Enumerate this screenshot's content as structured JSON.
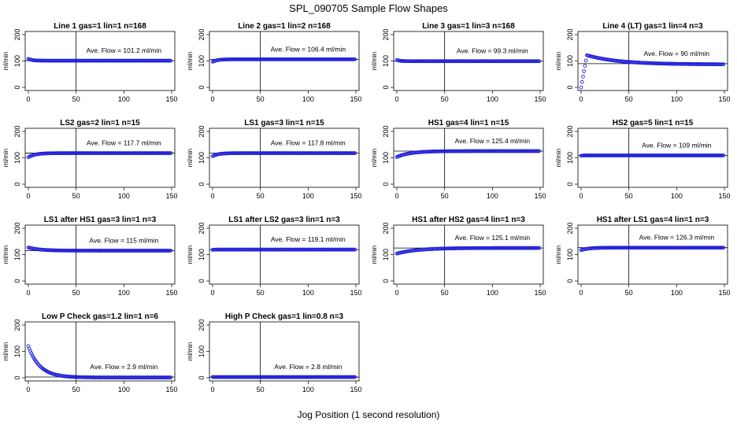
{
  "figure": {
    "title": "SPL_090705  Sample Flow Shapes",
    "xlabel": "Jog Position (1 second resolution)"
  },
  "chart_data": [
    {
      "type": "scatter",
      "title": "Line 1 gas=1 lin=1 n=168",
      "ylabel": "ml/min",
      "xlim": [
        0,
        150
      ],
      "ylim": [
        0,
        200
      ],
      "xticks": [
        0,
        50,
        100,
        150
      ],
      "yticks": [
        0,
        100,
        200
      ],
      "vline": 50,
      "hline": 101.2,
      "annotation": "Ave. Flow =  101.2  ml/min",
      "shape": {
        "start": 108,
        "level": 101.2,
        "peak": null,
        "settle": 4
      }
    },
    {
      "type": "scatter",
      "title": "Line 2 gas=1 lin=2 n=168",
      "ylabel": "ml/min",
      "xlim": [
        0,
        150
      ],
      "ylim": [
        0,
        200
      ],
      "xticks": [
        0,
        50,
        100,
        150
      ],
      "yticks": [
        0,
        100,
        200
      ],
      "vline": 50,
      "hline": 106.4,
      "annotation": "Ave. Flow =  106.4  ml/min",
      "shape": {
        "start": 97,
        "level": 106.4,
        "peak": null,
        "settle": 5
      }
    },
    {
      "type": "scatter",
      "title": "Line 3 gas=1 lin=3 n=168",
      "ylabel": "ml/min",
      "xlim": [
        0,
        150
      ],
      "ylim": [
        0,
        200
      ],
      "xticks": [
        0,
        50,
        100,
        150
      ],
      "yticks": [
        0,
        100,
        200
      ],
      "vline": 50,
      "hline": 99.3,
      "annotation": "Ave. Flow =  99.3  ml/min",
      "shape": {
        "start": 104,
        "level": 99.3,
        "peak": null,
        "settle": 3
      }
    },
    {
      "type": "scatter",
      "title": "Line 4 (LT) gas=1 lin=4 n=3",
      "ylabel": "ml/min",
      "xlim": [
        0,
        150
      ],
      "ylim": [
        0,
        200
      ],
      "xticks": [
        0,
        50,
        100,
        150
      ],
      "yticks": [
        0,
        100,
        200
      ],
      "vline": 50,
      "hline": 90,
      "annotation": "Ave. Flow =  90  ml/min",
      "shape": {
        "start": 0,
        "level": 87,
        "peak": 122,
        "settle": 40
      }
    },
    {
      "type": "scatter",
      "title": "LS2 gas=2 lin=1 n=15",
      "ylabel": "ml/min",
      "xlim": [
        0,
        150
      ],
      "ylim": [
        0,
        200
      ],
      "xticks": [
        0,
        50,
        100,
        150
      ],
      "yticks": [
        0,
        100,
        200
      ],
      "vline": 50,
      "hline": 117.7,
      "annotation": "Ave. Flow =  117.7  ml/min",
      "shape": {
        "start": 102,
        "level": 117.7,
        "peak": null,
        "settle": 7
      }
    },
    {
      "type": "scatter",
      "title": "LS1 gas=3 lin=1 n=15",
      "ylabel": "ml/min",
      "xlim": [
        0,
        150
      ],
      "ylim": [
        0,
        200
      ],
      "xticks": [
        0,
        50,
        100,
        150
      ],
      "yticks": [
        0,
        100,
        200
      ],
      "vline": 50,
      "hline": 117.8,
      "annotation": "Ave. Flow =  117.8  ml/min",
      "shape": {
        "start": 106,
        "level": 117.8,
        "peak": null,
        "settle": 6
      }
    },
    {
      "type": "scatter",
      "title": "HS1 gas=4 lin=1 n=15",
      "ylabel": "ml/min",
      "xlim": [
        0,
        150
      ],
      "ylim": [
        0,
        200
      ],
      "xticks": [
        0,
        50,
        100,
        150
      ],
      "yticks": [
        0,
        100,
        200
      ],
      "vline": 50,
      "hline": 125.4,
      "annotation": "Ave. Flow =  125.4  ml/min",
      "shape": {
        "start": 103,
        "level": 125.4,
        "peak": null,
        "settle": 14
      }
    },
    {
      "type": "scatter",
      "title": "HS2 gas=5 lin=1 n=15",
      "ylabel": "ml/min",
      "xlim": [
        0,
        150
      ],
      "ylim": [
        0,
        200
      ],
      "xticks": [
        0,
        50,
        100,
        150
      ],
      "yticks": [
        0,
        100,
        200
      ],
      "vline": 50,
      "hline": 109,
      "annotation": "Ave. Flow =  109  ml/min",
      "shape": {
        "start": 108,
        "level": 109,
        "peak": null,
        "settle": 2
      }
    },
    {
      "type": "scatter",
      "title": "LS1 after HS1 gas=3 lin=1 n=3",
      "ylabel": "ml/min",
      "xlim": [
        0,
        150
      ],
      "ylim": [
        0,
        200
      ],
      "xticks": [
        0,
        50,
        100,
        150
      ],
      "yticks": [
        0,
        100,
        200
      ],
      "vline": 50,
      "hline": 115,
      "annotation": "Ave. Flow =  115  ml/min",
      "shape": {
        "start": 127,
        "level": 115,
        "peak": null,
        "settle": 12
      }
    },
    {
      "type": "scatter",
      "title": "LS1 after LS2 gas=3 lin=1 n=3",
      "ylabel": "ml/min",
      "xlim": [
        0,
        150
      ],
      "ylim": [
        0,
        200
      ],
      "xticks": [
        0,
        50,
        100,
        150
      ],
      "yticks": [
        0,
        100,
        200
      ],
      "vline": 50,
      "hline": 119.1,
      "annotation": "Ave. Flow =  119.1  ml/min",
      "shape": {
        "start": 118,
        "level": 119.1,
        "peak": null,
        "settle": 2
      }
    },
    {
      "type": "scatter",
      "title": "HS1 after HS2 gas=4 lin=1 n=3",
      "ylabel": "ml/min",
      "xlim": [
        0,
        150
      ],
      "ylim": [
        0,
        200
      ],
      "xticks": [
        0,
        50,
        100,
        150
      ],
      "yticks": [
        0,
        100,
        200
      ],
      "vline": 50,
      "hline": 125.1,
      "annotation": "Ave. Flow =  125.1  ml/min",
      "shape": {
        "start": 104,
        "level": 125.1,
        "peak": null,
        "settle": 22
      }
    },
    {
      "type": "scatter",
      "title": "HS1 after LS1 gas=4 lin=1 n=3",
      "ylabel": "ml/min",
      "xlim": [
        0,
        150
      ],
      "ylim": [
        0,
        200
      ],
      "xticks": [
        0,
        50,
        100,
        150
      ],
      "yticks": [
        0,
        100,
        200
      ],
      "vline": 50,
      "hline": 126.3,
      "annotation": "Ave. Flow =  126.3  ml/min",
      "shape": {
        "start": 117,
        "level": 126.3,
        "peak": null,
        "settle": 8
      }
    },
    {
      "type": "scatter",
      "title": "Low P Check gas=1.2 lin=1 n=6",
      "ylabel": "ml/min",
      "xlim": [
        0,
        150
      ],
      "ylim": [
        0,
        200
      ],
      "xticks": [
        0,
        50,
        100,
        150
      ],
      "yticks": [
        0,
        100,
        200
      ],
      "vline": 50,
      "hline": 2.9,
      "annotation": "Ave. Flow =  2.9  ml/min",
      "shape": {
        "start": 120,
        "level": 1,
        "peak": null,
        "settle": 12
      }
    },
    {
      "type": "scatter",
      "title": "High P Check gas=1 lin=0.8 n=3",
      "ylabel": "ml/min",
      "xlim": [
        0,
        150
      ],
      "ylim": [
        0,
        200
      ],
      "xticks": [
        0,
        50,
        100,
        150
      ],
      "yticks": [
        0,
        100,
        200
      ],
      "vline": 50,
      "hline": 2.8,
      "annotation": "Ave. Flow =  2.8  ml/min",
      "shape": {
        "start": 3,
        "level": 2.8,
        "peak": null,
        "settle": 1
      }
    }
  ],
  "colors": {
    "points": "#2020dd",
    "lines": "#000000"
  }
}
